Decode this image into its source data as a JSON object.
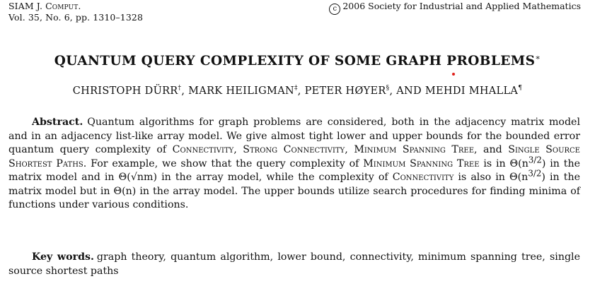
{
  "header": {
    "journal": "SIAM J. Comput.",
    "volume_line": "Vol. 35, No. 6, pp. 1310–1328",
    "copyright_symbol": "c",
    "copyright_text": "2006 Society for Industrial and Applied Mathematics"
  },
  "title": {
    "text": "QUANTUM QUERY COMPLEXITY OF SOME GRAPH PROBLEMS",
    "mark": "∗"
  },
  "authors": [
    {
      "name": "CHRISTOPH DÜRR",
      "mark": "†",
      "sep": ", "
    },
    {
      "name": "MARK HEILIGMAN",
      "mark": "‡",
      "sep": ", "
    },
    {
      "name": "PETER HØYER",
      "mark": "§",
      "sep": ", AND "
    },
    {
      "name": "MEHDI MHALLA",
      "mark": "¶",
      "sep": ""
    }
  ],
  "abstract": {
    "label": "Abstract.",
    "t1": "Quantum algorithms for graph problems are considered, both in the adjacency matrix model and in an adjacency list-like array model. We give almost tight lower and upper bounds for the bounded error quantum query complexity of ",
    "sc1": "Connectivity",
    "t2": ", ",
    "sc2": "Strong Connectivity",
    "t3": ", ",
    "sc3": "Minimum Spanning Tree",
    "t4": ", and ",
    "sc4": "Single Source Shortest Paths",
    "t5": ". For example, we show that the query complexity of ",
    "sc5": "Minimum Spanning Tree",
    "t6": " is in Θ(n",
    "exp1": "3/2",
    "t7": ") in the matrix model and in Θ(",
    "sqrt": "√nm",
    "t8": ") in the array model, while the complexity of ",
    "sc6": "Connectivity",
    "t9": " is also in Θ(n",
    "exp2": "3/2",
    "t10": ") in the matrix model but in Θ(n) in the array model. The upper bounds utilize search procedures for finding minima of functions under various conditions."
  },
  "keywords": {
    "label": "Key words.",
    "text": "graph theory, quantum algorithm, lower bound, connectivity, minimum spanning tree, single source shortest paths"
  }
}
